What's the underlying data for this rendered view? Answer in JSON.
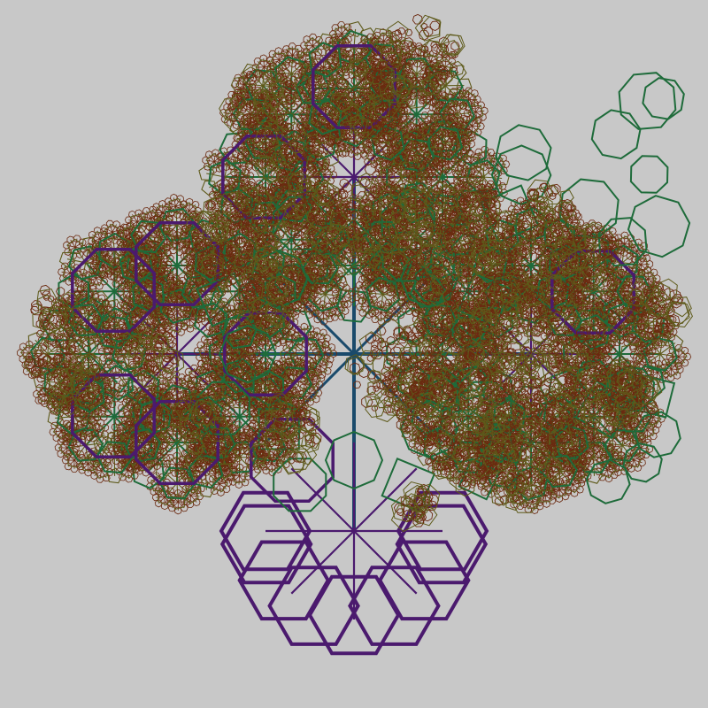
{
  "figure": {
    "kind": "recursive-polygon-fractal",
    "background": "#c8c8c8",
    "palette": {
      "level0": "#1a4a6b",
      "level1": "#4b1a6e",
      "level2": "#1e6b3a",
      "level3": "#5e5a1a",
      "level4": "#6b2a10"
    },
    "shapes": [
      "hexagon",
      "octagon",
      "diamond",
      "pentagon",
      "heptagon"
    ],
    "icons": [
      "polygon-icon",
      "spoke-icon"
    ]
  }
}
